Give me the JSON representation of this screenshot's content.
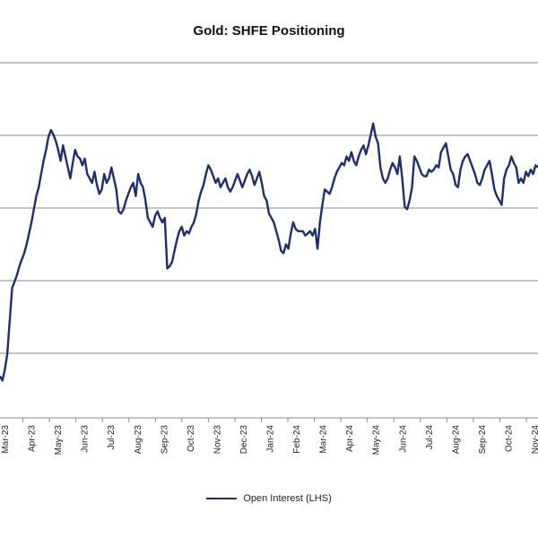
{
  "chart_data": {
    "type": "line",
    "title": "Gold: SHFE Positioning",
    "xlabel": "",
    "ylabel": "",
    "grid": true,
    "legend": "bottom",
    "x_tick_labels": [
      "Mar-23",
      "Apr-23",
      "May-23",
      "Jun-23",
      "Jul-23",
      "Aug-23",
      "Sep-23",
      "Oct-23",
      "Nov-23",
      "Dec-23",
      "Jan-24",
      "Feb-24",
      "Mar-24",
      "Apr-24",
      "May-24",
      "Jun-24",
      "Jul-24",
      "Aug-24",
      "Sep-24",
      "Oct-24",
      "Nov-24"
    ],
    "gridline_count": 5,
    "colors": {
      "series": "#1f2f6b",
      "grid": "#8a8a8a"
    },
    "series": [
      {
        "name": "Open Interest (LHS)",
        "x_start": "Feb-23",
        "x_end": "Dec-24",
        "values": [
          0.3,
          0.28,
          0.33,
          0.4,
          0.55,
          0.7,
          0.73,
          0.76,
          0.8,
          0.83,
          0.86,
          0.9,
          0.95,
          1.0,
          1.06,
          1.12,
          1.16,
          1.22,
          1.28,
          1.33,
          1.39,
          1.42,
          1.4,
          1.37,
          1.33,
          1.28,
          1.35,
          1.3,
          1.25,
          1.2,
          1.27,
          1.33,
          1.3,
          1.29,
          1.26,
          1.29,
          1.22,
          1.2,
          1.18,
          1.23,
          1.17,
          1.13,
          1.15,
          1.22,
          1.18,
          1.2,
          1.25,
          1.2,
          1.15,
          1.05,
          1.04,
          1.06,
          1.1,
          1.13,
          1.16,
          1.18,
          1.12,
          1.22,
          1.18,
          1.16,
          1.1,
          1.02,
          1.0,
          0.98,
          1.03,
          1.05,
          1.02,
          1.0,
          1.02,
          0.79,
          0.8,
          0.82,
          0.87,
          0.92,
          0.96,
          0.98,
          0.94,
          0.96,
          0.95,
          0.98,
          1.0,
          1.04,
          1.1,
          1.14,
          1.17,
          1.22,
          1.26,
          1.24,
          1.21,
          1.18,
          1.2,
          1.16,
          1.18,
          1.2,
          1.16,
          1.14,
          1.16,
          1.19,
          1.22,
          1.19,
          1.16,
          1.19,
          1.22,
          1.24,
          1.21,
          1.17,
          1.2,
          1.23,
          1.18,
          1.12,
          1.1,
          1.04,
          1.02,
          1.0,
          0.96,
          0.92,
          0.87,
          0.86,
          0.9,
          0.88,
          0.95,
          1.0,
          0.97,
          0.96,
          0.96,
          0.96,
          0.94,
          0.95,
          0.96,
          0.94,
          0.97,
          0.88,
          1.0,
          1.08,
          1.15,
          1.14,
          1.13,
          1.16,
          1.2,
          1.23,
          1.25,
          1.27,
          1.26,
          1.3,
          1.28,
          1.32,
          1.28,
          1.26,
          1.3,
          1.33,
          1.35,
          1.31,
          1.35,
          1.4,
          1.45,
          1.39,
          1.36,
          1.25,
          1.2,
          1.18,
          1.2,
          1.24,
          1.27,
          1.25,
          1.22,
          1.3,
          1.2,
          1.07,
          1.06,
          1.1,
          1.16,
          1.3,
          1.28,
          1.25,
          1.22,
          1.21,
          1.21,
          1.24,
          1.23,
          1.24,
          1.26,
          1.25,
          1.32,
          1.34,
          1.36,
          1.3,
          1.24,
          1.22,
          1.17,
          1.16,
          1.24,
          1.28,
          1.3,
          1.31,
          1.28,
          1.25,
          1.22,
          1.18,
          1.17,
          1.2,
          1.24,
          1.26,
          1.28,
          1.22,
          1.15,
          1.12,
          1.1,
          1.08,
          1.2,
          1.24,
          1.26,
          1.3,
          1.27,
          1.25,
          1.18,
          1.2,
          1.18,
          1.23,
          1.21,
          1.24,
          1.22,
          1.26,
          1.25
        ]
      }
    ]
  }
}
